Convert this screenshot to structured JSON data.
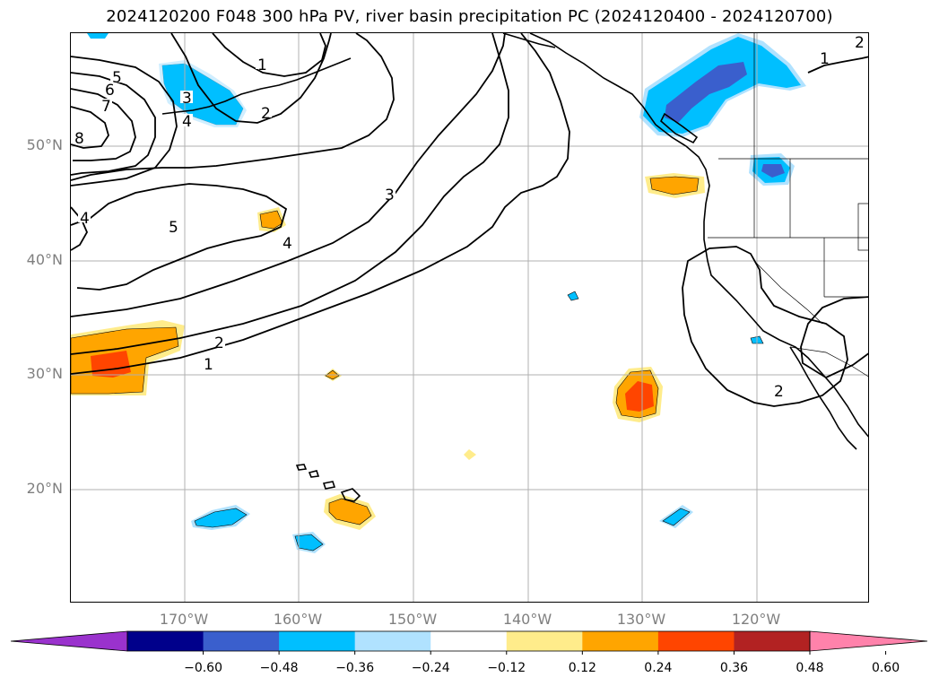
{
  "title": "2024120200 F048 300 hPa PV, river basin precipitation PC (2024120400 - 2024120700)",
  "lat_labels": [
    "50°N",
    "40°N",
    "30°N",
    "20°N"
  ],
  "lon_labels": [
    "170°W",
    "160°W",
    "150°W",
    "140°W",
    "130°W",
    "120°W"
  ],
  "colorbar": {
    "ticks": [
      "−0.60",
      "−0.48",
      "−0.36",
      "−0.24",
      "−0.12",
      "0.12",
      "0.24",
      "0.36",
      "0.48",
      "0.60"
    ],
    "colors": [
      "#9a32cd",
      "#00008b",
      "#3a5fcd",
      "#00bfff",
      "#b0e2ff",
      "#ffffff",
      "#ffec8b",
      "#ffa500",
      "#ff4500",
      "#b22222",
      "#ff82ab"
    ]
  },
  "contour_labels": [
    "1",
    "2",
    "3",
    "4",
    "5",
    "6",
    "7",
    "8"
  ]
}
